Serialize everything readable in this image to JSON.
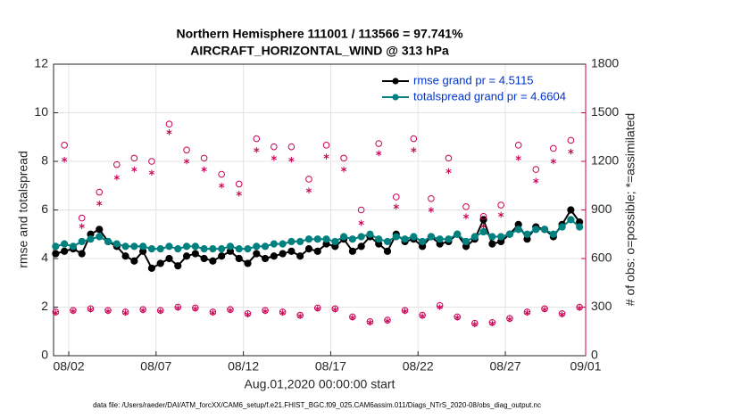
{
  "chart_data": {
    "type": "line",
    "title": "Northern Hemisphere 111001 / 113566 = 97.741%",
    "subtitle": "AIRCRAFT_HORIZONTAL_WIND @ 313 hPa",
    "xlabel": "Aug.01,2020 00:00:00 start",
    "ylabel": "rmse and totalspread",
    "y2label": "# of obs: o=possible; *=assimilated",
    "footnote": "data file: /Users/raeder/DAI/ATM_forcXX/CAM6_setup/f.e21.FHIST_BGC.f09_025.CAM6assim.011/Diags_NTrS_2020-08/obs_diag_output.nc",
    "x": [
      0.25,
      0.75,
      1.25,
      1.75,
      2.25,
      2.75,
      3.25,
      3.75,
      4.25,
      4.75,
      5.25,
      5.75,
      6.25,
      6.75,
      7.25,
      7.75,
      8.25,
      8.75,
      9.25,
      9.75,
      10.25,
      10.75,
      11.25,
      11.75,
      12.25,
      12.75,
      13.25,
      13.75,
      14.25,
      14.75,
      15.25,
      15.75,
      16.25,
      16.75,
      17.25,
      17.75,
      18.25,
      18.75,
      19.25,
      19.75,
      20.25,
      20.75,
      21.25,
      21.75,
      22.25,
      22.75,
      23.25,
      23.75,
      24.25,
      24.75,
      25.25,
      25.75,
      26.25,
      26.75,
      27.25,
      27.75,
      28.25,
      28.75,
      29.25,
      29.75,
      30.25
    ],
    "xlim": [
      0.13,
      30.6
    ],
    "xticks": [
      {
        "value": 1,
        "label": "08/02"
      },
      {
        "value": 6,
        "label": "08/07"
      },
      {
        "value": 11,
        "label": "08/12"
      },
      {
        "value": 16,
        "label": "08/17"
      },
      {
        "value": 21,
        "label": "08/22"
      },
      {
        "value": 26,
        "label": "08/27"
      },
      {
        "value": 30.6,
        "label": "09/01"
      }
    ],
    "ylim": [
      0,
      12
    ],
    "yticks": [
      0,
      2,
      4,
      6,
      8,
      10,
      12
    ],
    "y2lim": [
      0,
      1800
    ],
    "y2ticks": [
      0,
      300,
      600,
      900,
      1200,
      1500,
      1800
    ],
    "y2color": "#cc0055",
    "grid": true,
    "legend": "upper right",
    "series": [
      {
        "name": "rmse grand pr = 4.5115",
        "color": "#000000",
        "marker": "dot",
        "values": [
          4.2,
          4.3,
          4.4,
          4.2,
          5.0,
          5.2,
          4.7,
          4.5,
          4.1,
          3.9,
          4.3,
          3.6,
          3.8,
          4.0,
          3.7,
          4.1,
          4.2,
          4.0,
          3.9,
          4.1,
          4.3,
          4.0,
          3.8,
          4.2,
          4.0,
          4.1,
          4.2,
          4.3,
          4.1,
          4.4,
          4.3,
          4.6,
          4.5,
          4.8,
          4.3,
          4.5,
          4.9,
          4.6,
          4.3,
          5.0,
          4.7,
          4.8,
          4.5,
          4.9,
          4.6,
          4.7,
          5.0,
          4.5,
          4.8,
          5.6,
          4.6,
          4.7,
          5.0,
          5.4,
          4.8,
          5.3,
          5.2,
          4.9,
          5.4,
          6.0,
          5.5
        ]
      },
      {
        "name": "totalspread grand pr = 4.6604",
        "color": "#00807f",
        "marker": "dot",
        "values": [
          4.5,
          4.6,
          4.5,
          4.7,
          4.8,
          4.9,
          4.7,
          4.6,
          4.5,
          4.5,
          4.5,
          4.4,
          4.4,
          4.5,
          4.4,
          4.5,
          4.5,
          4.4,
          4.4,
          4.4,
          4.5,
          4.4,
          4.4,
          4.5,
          4.5,
          4.6,
          4.6,
          4.7,
          4.7,
          4.8,
          4.8,
          4.8,
          4.7,
          4.9,
          4.8,
          4.9,
          5.0,
          4.8,
          4.7,
          4.9,
          4.8,
          4.9,
          4.7,
          4.9,
          4.8,
          4.8,
          5.0,
          4.7,
          4.9,
          5.1,
          4.9,
          4.9,
          5.0,
          5.2,
          5.0,
          5.2,
          5.2,
          5.0,
          5.3,
          5.6,
          5.3
        ]
      },
      {
        "axis": "y2",
        "color": "#cc0055",
        "marker": "circle",
        "values": [
          270,
          1300,
          280,
          850,
          290,
          1010,
          280,
          1180,
          270,
          1220,
          285,
          1200,
          280,
          1430,
          300,
          1270,
          295,
          1220,
          270,
          1120,
          285,
          1060,
          260,
          1340,
          280,
          1290,
          270,
          1290,
          250,
          1090,
          295,
          1300,
          290,
          1220,
          240,
          900,
          210,
          1310,
          220,
          980,
          280,
          1340,
          250,
          970,
          310,
          1220,
          240,
          920,
          200,
          860,
          205,
          930,
          230,
          1300,
          270,
          1150,
          290,
          1280,
          260,
          1330,
          300
        ]
      },
      {
        "axis": "y2",
        "color": "#cc0055",
        "marker": "asterisk",
        "values": [
          265,
          1210,
          275,
          800,
          285,
          940,
          275,
          1100,
          265,
          1150,
          280,
          1130,
          275,
          1380,
          295,
          1200,
          290,
          1150,
          265,
          1050,
          280,
          1000,
          255,
          1270,
          275,
          1220,
          265,
          1210,
          245,
          1020,
          290,
          1230,
          285,
          1150,
          235,
          820,
          205,
          1250,
          215,
          920,
          275,
          1270,
          245,
          900,
          300,
          1140,
          235,
          860,
          195,
          800,
          200,
          870,
          225,
          1220,
          265,
          1080,
          285,
          1200,
          255,
          1260,
          295
        ]
      }
    ]
  }
}
